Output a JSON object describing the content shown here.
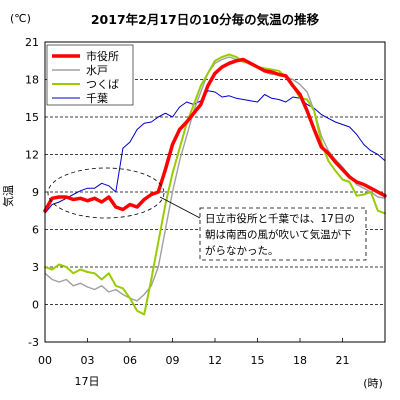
{
  "chart_data": {
    "type": "line",
    "title": "2017年2月17日の10分毎の気温の推移",
    "ylabel": "気温",
    "y_unit": "(℃)",
    "x_unit": "(時)",
    "x_date_label": "17日",
    "ylim": [
      -3,
      21
    ],
    "y_ticks": [
      "-3",
      "0",
      "3",
      "6",
      "9",
      "12",
      "15",
      "18",
      "21"
    ],
    "xlim": [
      0,
      24
    ],
    "x_ticks": [
      "00",
      "03",
      "06",
      "09",
      "12",
      "15",
      "18",
      "21"
    ],
    "grid": "horizontal dashed",
    "legend_position": "top-left",
    "annotation": "日立市役所と千葉では、17日の朝は南西の風が吹いて気温が下がらなかった。",
    "series": [
      {
        "name": "市役所",
        "color": "#ff0000",
        "x": [
          0,
          0.5,
          1,
          1.5,
          2,
          2.5,
          3,
          3.5,
          4,
          4.5,
          5,
          5.5,
          6,
          6.5,
          7,
          7.5,
          8,
          8.5,
          9,
          9.5,
          10,
          10.5,
          11,
          11.5,
          12,
          12.5,
          13,
          13.5,
          14,
          14.5,
          15,
          15.5,
          16,
          16.5,
          17,
          17.5,
          18,
          18.5,
          19,
          19.5,
          20,
          20.5,
          21,
          21.5,
          22,
          22.5,
          23,
          23.5,
          24
        ],
        "values": [
          7.5,
          8.5,
          8.6,
          8.6,
          8.4,
          8.5,
          8.3,
          8.5,
          8.2,
          8.6,
          7.8,
          7.6,
          8.0,
          7.8,
          8.4,
          8.8,
          9.0,
          10.8,
          12.8,
          14.0,
          14.6,
          15.3,
          16.0,
          17.5,
          18.5,
          19.0,
          19.3,
          19.5,
          19.6,
          19.3,
          19.0,
          18.7,
          18.6,
          18.4,
          18.3,
          17.5,
          16.8,
          15.5,
          14.0,
          12.6,
          12.1,
          11.4,
          10.8,
          10.2,
          9.8,
          9.6,
          9.3,
          9.0,
          8.7
        ]
      },
      {
        "name": "水戸",
        "color": "#a0a0a0",
        "x": [
          0,
          0.5,
          1,
          1.5,
          2,
          2.5,
          3,
          3.5,
          4,
          4.5,
          5,
          5.5,
          6,
          6.5,
          7,
          7.5,
          8,
          8.5,
          9,
          9.5,
          10,
          10.5,
          11,
          11.5,
          12,
          12.5,
          13,
          13.5,
          14,
          14.5,
          15,
          15.5,
          16,
          16.5,
          17,
          17.5,
          18,
          18.5,
          19,
          19.5,
          20,
          20.5,
          21,
          21.5,
          22,
          22.5,
          23,
          23.5,
          24
        ],
        "values": [
          2.5,
          2.0,
          1.8,
          2.0,
          1.5,
          1.7,
          1.4,
          1.2,
          1.5,
          1.0,
          1.2,
          0.8,
          0.5,
          0.3,
          0.8,
          1.5,
          3.0,
          6.0,
          9.0,
          11.5,
          13.5,
          15.5,
          17.0,
          18.5,
          19.3,
          19.6,
          19.8,
          19.6,
          19.5,
          19.2,
          19.0,
          18.6,
          18.4,
          18.5,
          18.2,
          18.0,
          17.6,
          17.0,
          15.5,
          13.5,
          12.3,
          11.6,
          11.0,
          10.3,
          9.6,
          9.3,
          9.0,
          8.6,
          8.5
        ]
      },
      {
        "name": "つくば",
        "color": "#99cc00",
        "x": [
          0,
          0.5,
          1,
          1.5,
          2,
          2.5,
          3,
          3.5,
          4,
          4.5,
          5,
          5.5,
          6,
          6.5,
          7,
          7.5,
          8,
          8.5,
          9,
          9.5,
          10,
          10.5,
          11,
          11.5,
          12,
          12.5,
          13,
          13.5,
          14,
          14.5,
          15,
          15.5,
          16,
          16.5,
          17,
          17.5,
          18,
          18.5,
          19,
          19.5,
          20,
          20.5,
          21,
          21.5,
          22,
          22.5,
          23,
          23.5,
          24
        ],
        "values": [
          3.0,
          2.8,
          3.2,
          3.0,
          2.5,
          2.8,
          2.6,
          2.5,
          2.0,
          2.5,
          1.5,
          1.3,
          0.5,
          -0.5,
          -0.8,
          2.0,
          5.0,
          8.0,
          10.5,
          12.5,
          14.5,
          16.0,
          17.5,
          18.5,
          19.5,
          19.8,
          20.0,
          19.8,
          19.4,
          19.3,
          19.0,
          18.9,
          18.8,
          18.7,
          18.2,
          17.5,
          16.5,
          16.4,
          15.5,
          13.0,
          11.5,
          10.7,
          10.0,
          9.8,
          8.7,
          8.8,
          9.0,
          7.5,
          7.3
        ]
      },
      {
        "name": "千葉",
        "color": "#0000cc",
        "x": [
          0,
          0.5,
          1,
          1.5,
          2,
          2.5,
          3,
          3.5,
          4,
          4.5,
          5,
          5.5,
          6,
          6.5,
          7,
          7.5,
          8,
          8.5,
          9,
          9.5,
          10,
          10.5,
          11,
          11.5,
          12,
          12.5,
          13,
          13.5,
          14,
          14.5,
          15,
          15.5,
          16,
          16.5,
          17,
          17.5,
          18,
          18.5,
          19,
          19.5,
          20,
          20.5,
          21,
          21.5,
          22,
          22.5,
          23,
          23.5,
          24
        ],
        "values": [
          7.3,
          8.0,
          8.2,
          8.5,
          8.8,
          9.1,
          9.3,
          9.3,
          9.7,
          9.5,
          9.0,
          12.5,
          13.0,
          14.0,
          14.5,
          14.6,
          15.0,
          15.3,
          15.0,
          15.8,
          16.2,
          16.0,
          16.3,
          17.1,
          17.0,
          16.6,
          16.7,
          16.5,
          16.4,
          16.3,
          16.2,
          16.8,
          16.5,
          16.4,
          16.2,
          16.6,
          16.5,
          16.0,
          15.7,
          15.2,
          14.9,
          14.6,
          14.4,
          14.2,
          13.6,
          12.8,
          12.3,
          12.0,
          11.5
        ]
      }
    ]
  }
}
